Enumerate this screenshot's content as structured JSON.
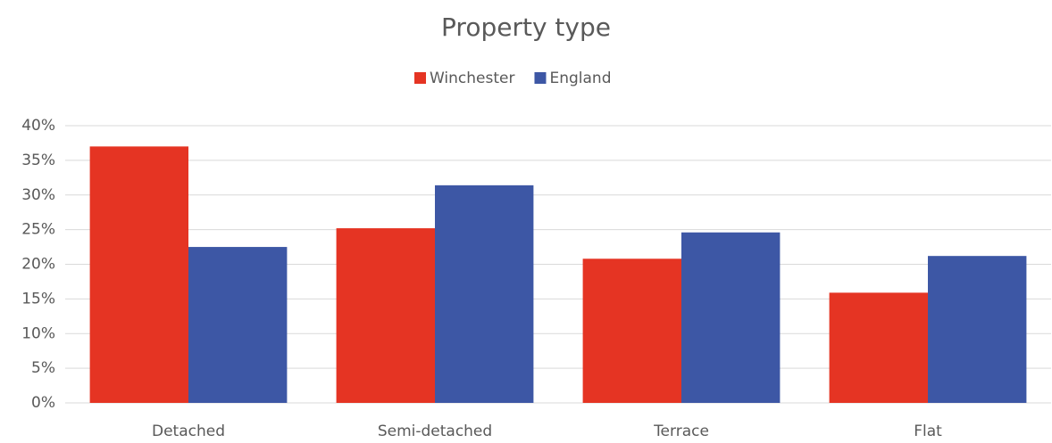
{
  "chart_data": {
    "type": "bar",
    "title": "Property type",
    "categories": [
      "Detached",
      "Semi-detached",
      "Terrace",
      "Flat"
    ],
    "series": [
      {
        "name": "Winchester",
        "color": "#e53423",
        "values": [
          37.0,
          25.2,
          20.8,
          15.9
        ]
      },
      {
        "name": "England",
        "color": "#3d57a5",
        "values": [
          22.5,
          31.4,
          24.6,
          21.2
        ]
      }
    ],
    "ylim": [
      0,
      40
    ],
    "yticks": [
      {
        "value": 0,
        "label": "0%"
      },
      {
        "value": 5,
        "label": "5%"
      },
      {
        "value": 10,
        "label": "10%"
      },
      {
        "value": 15,
        "label": "15%"
      },
      {
        "value": 20,
        "label": "20%"
      },
      {
        "value": 25,
        "label": "25%"
      },
      {
        "value": 30,
        "label": "30%"
      },
      {
        "value": 35,
        "label": "35%"
      },
      {
        "value": 40,
        "label": "40%"
      }
    ],
    "grid": true,
    "legend": "top"
  }
}
